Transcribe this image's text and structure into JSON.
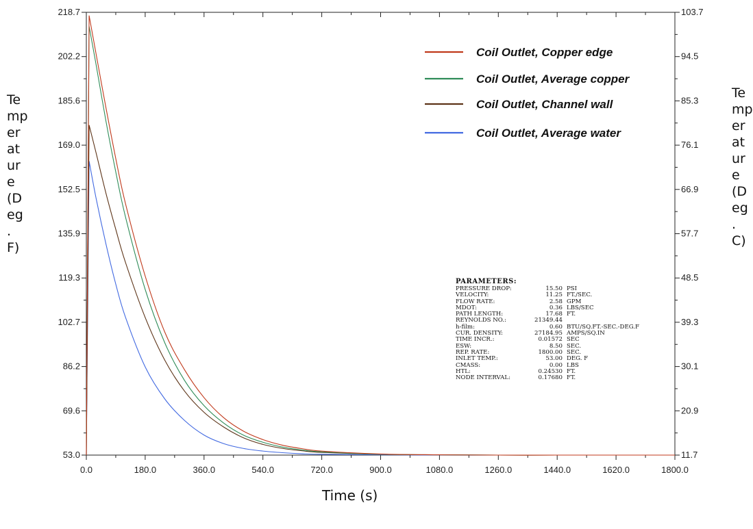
{
  "chart_data": {
    "type": "line",
    "title": "",
    "xlabel": "Time (s)",
    "ylabel_left": "Temperature (Deg. F)",
    "ylabel_right": "Temperature (Deg. C)",
    "xlim": [
      0,
      1800
    ],
    "ylim": [
      53.0,
      218.7
    ],
    "ylim_right": [
      11.7,
      103.7
    ],
    "x_ticks": [
      "0.0",
      "180.0",
      "360.0",
      "540.0",
      "720.0",
      "900.0",
      "1080.0",
      "1260.0",
      "1440.0",
      "1620.0",
      "1800.0"
    ],
    "y_ticks_left": [
      "53.0",
      "69.6",
      "86.2",
      "102.7",
      "119.3",
      "135.9",
      "152.5",
      "169.0",
      "185.6",
      "202.2",
      "218.7"
    ],
    "y_ticks_right": [
      "11.7",
      "20.9",
      "30.1",
      "39.3",
      "48.5",
      "57.7",
      "66.9",
      "76.1",
      "85.3",
      "94.5",
      "103.7"
    ],
    "legend_position": "top-right",
    "series": [
      {
        "name": "Coil Outlet, Copper edge",
        "color": "#c0391b",
        "x": [
          0,
          8.5,
          30,
          60,
          90,
          120,
          180,
          240,
          300,
          360,
          420,
          480,
          540,
          600,
          660,
          720,
          900,
          1080,
          1260,
          1440,
          1620,
          1800
        ],
        "y": [
          53.0,
          217.5,
          203,
          183,
          164,
          147,
          120,
          99,
          85,
          74.5,
          67,
          62,
          58.8,
          56.7,
          55.4,
          54.5,
          53.4,
          53.1,
          53.0,
          53.0,
          53.0,
          53.0
        ]
      },
      {
        "name": "Coil Outlet, Average copper",
        "color": "#2e8b57",
        "x": [
          0,
          8.5,
          30,
          60,
          90,
          120,
          180,
          240,
          300,
          360,
          420,
          480,
          540,
          600,
          660,
          720,
          900,
          1080,
          1260,
          1440,
          1620,
          1800
        ],
        "y": [
          53.0,
          213.5,
          199,
          178,
          159,
          142,
          115,
          95,
          81,
          71.5,
          65,
          60.5,
          57.8,
          56,
          54.9,
          54.2,
          53.3,
          53.1,
          53.0,
          53.0,
          53.0,
          53.0
        ]
      },
      {
        "name": "Coil Outlet, Channel wall",
        "color": "#5c3317",
        "x": [
          0,
          8.5,
          30,
          60,
          90,
          120,
          180,
          240,
          300,
          360,
          420,
          480,
          540,
          600,
          660,
          720,
          900,
          1080,
          1260,
          1440,
          1620,
          1800
        ],
        "y": [
          53.0,
          176.5,
          166,
          151,
          137.5,
          125,
          104.5,
          88.5,
          77,
          69,
          63.5,
          59.5,
          57,
          55.5,
          54.6,
          54,
          53.3,
          53.1,
          53.0,
          53.0,
          53.0,
          53.0
        ]
      },
      {
        "name": "Coil Outlet, Average water",
        "color": "#4169e1",
        "x": [
          0,
          8.5,
          30,
          60,
          90,
          120,
          180,
          240,
          300,
          360,
          420,
          480,
          540,
          600,
          660,
          720,
          900,
          1080,
          1260,
          1440,
          1620,
          1800
        ],
        "y": [
          53.0,
          163,
          149,
          132,
          117,
          104.5,
          86,
          74,
          66,
          60.5,
          57.3,
          55.5,
          54.5,
          53.9,
          53.5,
          53.3,
          53.1,
          53.0,
          53.0,
          53.0,
          53.0,
          53.0
        ]
      }
    ],
    "annotation": {
      "title": "PARAMETERS:",
      "rows": [
        {
          "label": "PRESSURE DROP:",
          "value": "15.50",
          "unit": "PSI"
        },
        {
          "label": "VELOCITY:",
          "value": "11.25",
          "unit": "FT./SEC."
        },
        {
          "label": "FLOW RATE:",
          "value": "2.58",
          "unit": "GPM"
        },
        {
          "label": "MDOT:",
          "value": "0.36",
          "unit": "LBS/SEC"
        },
        {
          "label": "PATH LENGTH:",
          "value": "17.68",
          "unit": "FT."
        },
        {
          "label": "REYNOLDS NO.:",
          "value": "21349.44",
          "unit": ""
        },
        {
          "label": "h-film:",
          "value": "0.60",
          "unit": "BTU/SQ.FT.-SEC.-DEG.F"
        },
        {
          "label": "CUR. DENSITY:",
          "value": "27184.95",
          "unit": "AMPS/SQ.IN"
        },
        {
          "label": "TIME INCR.:",
          "value": "0.01572",
          "unit": "SEC"
        },
        {
          "label": "ESW:",
          "value": "8.50",
          "unit": "SEC."
        },
        {
          "label": "REP. RATE:",
          "value": "1800.00",
          "unit": "SEC."
        },
        {
          "label": "INLET TEMP.:",
          "value": "53.00",
          "unit": "DEG. F"
        },
        {
          "label": "CMASS:",
          "value": "0.00",
          "unit": "LBS"
        },
        {
          "label": "HTL:",
          "value": "0.24530",
          "unit": "FT."
        },
        {
          "label": "NODE INTERVAL:",
          "value": "0.17680",
          "unit": "FT."
        }
      ]
    }
  }
}
